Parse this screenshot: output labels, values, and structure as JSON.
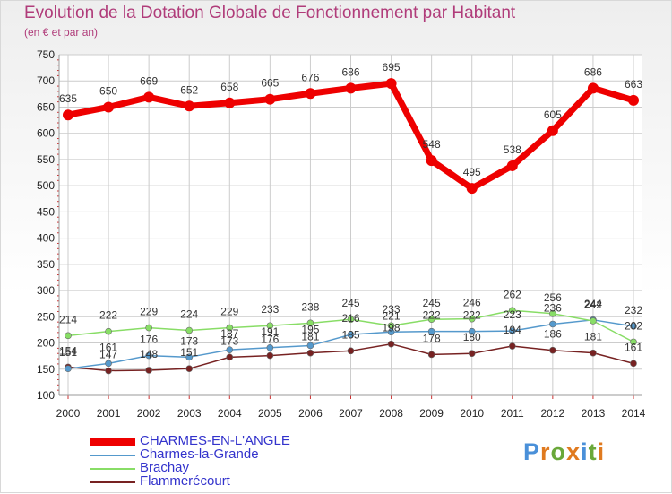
{
  "title": "Evolution de la Dotation Globale de Fonctionnement par Habitant",
  "subtitle": "(en € et par an)",
  "logo": {
    "text": "Proxiti",
    "colors": [
      "#4a90d9",
      "#e07a1f",
      "#6aa83a",
      "#e07a1f",
      "#4a90d9",
      "#6aa83a",
      "#e07a1f"
    ]
  },
  "chart_data": {
    "type": "line",
    "x": [
      2000,
      2001,
      2002,
      2003,
      2004,
      2005,
      2006,
      2007,
      2008,
      2009,
      2010,
      2011,
      2012,
      2013,
      2014
    ],
    "ylim": [
      100,
      750
    ],
    "yticks": [
      100,
      150,
      200,
      250,
      300,
      350,
      400,
      450,
      500,
      550,
      600,
      650,
      700,
      750
    ],
    "grid": true,
    "legend_position": "bottom-left",
    "series": [
      {
        "name": "CHARMES-EN-L'ANGLE",
        "color": "#ee0000",
        "legend_color": "#3333cc",
        "values": [
          635,
          650,
          669,
          652,
          658,
          665,
          676,
          686,
          695,
          548,
          495,
          538,
          605,
          686,
          663
        ],
        "labels": [
          "635",
          "650",
          "669",
          "652",
          "658",
          "665",
          "676",
          "686",
          "695",
          "548",
          "495",
          "538",
          "605",
          "686",
          "663"
        ]
      },
      {
        "name": "Charmes-la-Grande",
        "color": "#5599cc",
        "legend_color": "#3333cc",
        "values": [
          151,
          161,
          176,
          173,
          187,
          191,
          195,
          216,
          221,
          222,
          222,
          223,
          236,
          244,
          232
        ],
        "labels": [
          "151",
          "161",
          "176",
          "173",
          "187",
          "191",
          "195",
          "216",
          "221",
          "222",
          "222",
          "223",
          "236",
          "244",
          "232"
        ]
      },
      {
        "name": "Brachay",
        "color": "#88dd66",
        "legend_color": "#3333cc",
        "values": [
          214,
          222,
          229,
          224,
          229,
          233,
          238,
          245,
          233,
          245,
          246,
          262,
          256,
          242,
          202
        ],
        "labels": [
          "214",
          "222",
          "229",
          "224",
          "229",
          "233",
          "238",
          "245",
          "233",
          "245",
          "246",
          "262",
          "256",
          "242",
          "202"
        ]
      },
      {
        "name": "Flammerécourt",
        "color": "#772222",
        "legend_color": "#3333cc",
        "values": [
          154,
          147,
          148,
          151,
          173,
          176,
          181,
          185,
          198,
          178,
          180,
          194,
          186,
          181,
          161
        ],
        "labels": [
          "154",
          "147",
          "148",
          "151",
          "173",
          "176",
          "181",
          "185",
          "198",
          "178",
          "180",
          "194",
          "186",
          "181",
          "161"
        ]
      }
    ]
  }
}
